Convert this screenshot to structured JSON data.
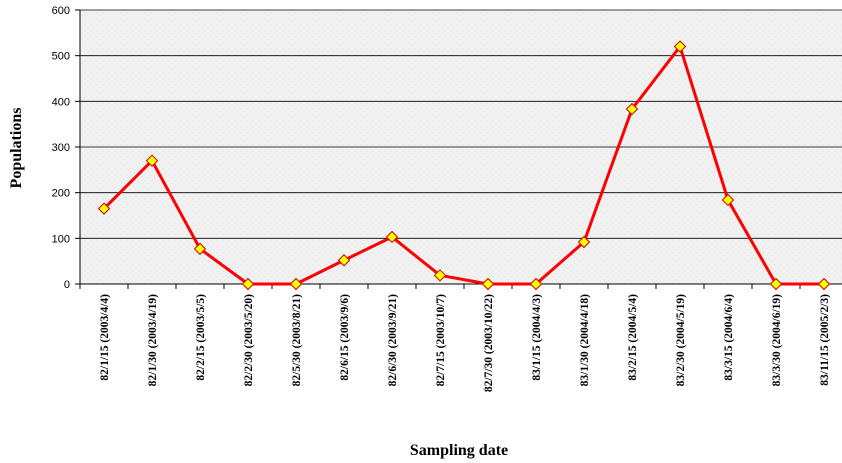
{
  "chart_data": {
    "type": "line",
    "title": "",
    "xlabel": "Sampling date",
    "ylabel": "Populations",
    "ylim": [
      0,
      600
    ],
    "yticks": [
      0,
      100,
      200,
      300,
      400,
      500,
      600
    ],
    "grid": true,
    "legend": "none",
    "colors": {
      "line": "#ff0000",
      "marker_fill": "#ffff00",
      "marker_stroke": "#cc0000",
      "gridline": "#000000",
      "plot_background": "#f0f0f0"
    },
    "categories": [
      "82/1/15 (2003/4/4)",
      "82/1/30 (2003/4/19)",
      "82/2/15 (2003/5/5)",
      "82/2/30 (2003/5/20)",
      "82/5/30 (2003/8/21)",
      "82/6/15 (2003/9/6)",
      "82/6/30 (2003/9/21)",
      "82/7/15 (2003/10/7)",
      "82/7/30 (2003/10/22)",
      "83/1/15 (2004/4/3)",
      "83/1/30 (2004/4/18)",
      "83/2/15 (2004/5/4)",
      "83/2/30 (2004/5/19)",
      "83/3/15 (2004/6/4)",
      "83/3/30 (2004/6/19)",
      "83/11/15 (2005/2/3)"
    ],
    "series": [
      {
        "values": [
          165,
          270,
          77,
          0,
          0,
          52,
          103,
          19,
          0,
          0,
          92,
          383,
          520,
          184,
          0,
          0
        ]
      }
    ]
  }
}
